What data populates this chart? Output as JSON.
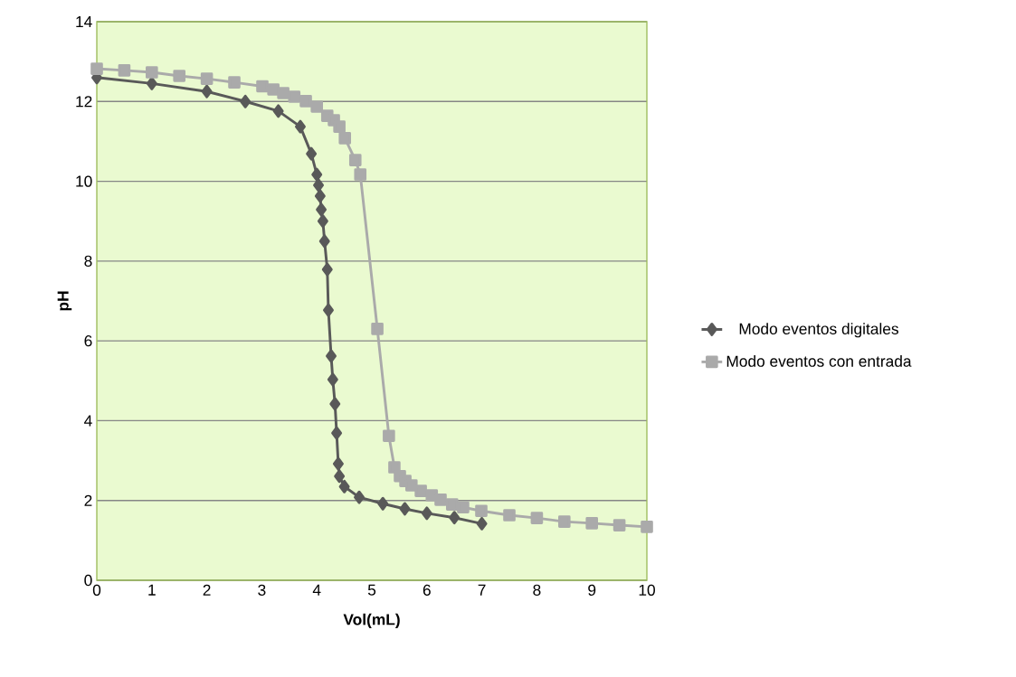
{
  "chart_data": {
    "type": "line",
    "xlabel": "Vol(mL)",
    "ylabel": "pH",
    "xlim": [
      0,
      10
    ],
    "ylim": [
      0,
      14
    ],
    "xticks": [
      0,
      1,
      2,
      3,
      4,
      5,
      6,
      7,
      8,
      9,
      10
    ],
    "yticks": [
      0,
      2,
      4,
      6,
      8,
      10,
      12,
      14
    ],
    "grid": "y",
    "legend": "right",
    "line_style": "solid",
    "series": [
      {
        "name": "Modo eventos digitales",
        "color": "#595959",
        "marker": "diamond",
        "x": [
          0,
          1,
          2,
          2.7,
          3.3,
          3.7,
          3.9,
          4.0,
          4.03,
          4.06,
          4.08,
          4.11,
          4.14,
          4.19,
          4.21,
          4.26,
          4.29,
          4.33,
          4.36,
          4.39,
          4.41,
          4.5,
          4.77,
          5.2,
          5.6,
          6.0,
          6.5,
          7.0
        ],
        "values": [
          12.6,
          12.45,
          12.25,
          12.0,
          11.76,
          11.37,
          10.69,
          10.17,
          9.9,
          9.63,
          9.29,
          9.0,
          8.5,
          7.79,
          6.77,
          5.62,
          5.03,
          4.42,
          3.69,
          2.92,
          2.61,
          2.35,
          2.08,
          1.92,
          1.79,
          1.68,
          1.57,
          1.42
        ]
      },
      {
        "name": "Modo eventos con entrada",
        "color": "#aaaaaa",
        "marker": "square",
        "x": [
          0,
          0.5,
          1,
          1.5,
          2,
          2.5,
          3.01,
          3.21,
          3.39,
          3.59,
          3.8,
          4.0,
          4.19,
          4.31,
          4.41,
          4.51,
          4.7,
          4.79,
          5.1,
          5.31,
          5.41,
          5.51,
          5.61,
          5.72,
          5.89,
          6.09,
          6.25,
          6.46,
          6.66,
          6.99,
          7.5,
          8.0,
          8.5,
          9.0,
          9.5,
          10.0
        ],
        "values": [
          12.82,
          12.78,
          12.73,
          12.64,
          12.57,
          12.48,
          12.38,
          12.3,
          12.21,
          12.12,
          12.01,
          11.87,
          11.64,
          11.53,
          11.37,
          11.08,
          10.53,
          10.17,
          6.3,
          3.62,
          2.83,
          2.61,
          2.49,
          2.38,
          2.24,
          2.13,
          2.02,
          1.9,
          1.83,
          1.74,
          1.63,
          1.56,
          1.47,
          1.43,
          1.38,
          1.34
        ]
      }
    ]
  }
}
